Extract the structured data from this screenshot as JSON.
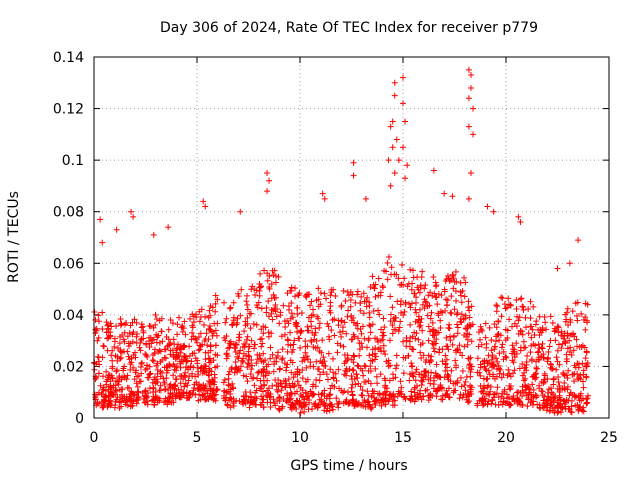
{
  "chart_data": {
    "type": "scatter",
    "title": "Day 306 of 2024, Rate Of TEC Index for receiver p779",
    "xlabel": "GPS time / hours",
    "ylabel": "ROTI / TECUs",
    "xlim": [
      0,
      25
    ],
    "ylim": [
      0,
      0.14
    ],
    "grid": true,
    "marker": "+",
    "marker_color": "#ff0000",
    "x_ticks": [
      {
        "value": 0,
        "label": "0"
      },
      {
        "value": 5,
        "label": "5"
      },
      {
        "value": 10,
        "label": "10"
      },
      {
        "value": 15,
        "label": "15"
      },
      {
        "value": 20,
        "label": "20"
      },
      {
        "value": 25,
        "label": "25"
      }
    ],
    "y_ticks": [
      {
        "value": 0,
        "label": "0"
      },
      {
        "value": 0.02,
        "label": "0.02"
      },
      {
        "value": 0.04,
        "label": "0.04"
      },
      {
        "value": 0.06,
        "label": "0.06"
      },
      {
        "value": 0.08,
        "label": "0.08"
      },
      {
        "value": 0.1,
        "label": "0.1"
      },
      {
        "value": 0.12,
        "label": "0.12"
      },
      {
        "value": 0.14,
        "label": "0.14"
      }
    ],
    "data_gaps_hours": [
      [
        6.0,
        6.3
      ],
      [
        18.4,
        18.6
      ],
      [
        24.0,
        25.0
      ]
    ],
    "envelope": {
      "x": [
        0.0,
        0.5,
        1.0,
        1.5,
        2.0,
        2.5,
        3.0,
        3.5,
        4.0,
        4.5,
        5.0,
        5.5,
        6.0,
        6.5,
        7.0,
        7.5,
        8.0,
        8.5,
        9.0,
        9.5,
        10.0,
        10.5,
        11.0,
        11.5,
        12.0,
        12.5,
        13.0,
        13.5,
        14.0,
        14.5,
        15.0,
        15.5,
        16.0,
        16.5,
        17.0,
        17.5,
        18.0,
        18.5,
        19.0,
        19.5,
        20.0,
        20.5,
        21.0,
        21.5,
        22.0,
        22.5,
        23.0,
        23.5,
        24.0
      ],
      "typical_max": [
        0.045,
        0.04,
        0.038,
        0.038,
        0.039,
        0.038,
        0.04,
        0.04,
        0.04,
        0.04,
        0.042,
        0.045,
        0.048,
        0.045,
        0.048,
        0.05,
        0.055,
        0.058,
        0.055,
        0.052,
        0.05,
        0.05,
        0.052,
        0.05,
        0.05,
        0.05,
        0.052,
        0.055,
        0.06,
        0.065,
        0.065,
        0.06,
        0.055,
        0.055,
        0.055,
        0.058,
        0.058,
        0.038,
        0.04,
        0.045,
        0.048,
        0.048,
        0.045,
        0.042,
        0.04,
        0.04,
        0.042,
        0.045,
        0.045
      ],
      "min": [
        0.006,
        0.005,
        0.005,
        0.005,
        0.005,
        0.006,
        0.006,
        0.006,
        0.008,
        0.008,
        0.008,
        0.008,
        0.008,
        0.005,
        0.005,
        0.005,
        0.005,
        0.005,
        0.004,
        0.004,
        0.003,
        0.004,
        0.004,
        0.004,
        0.004,
        0.005,
        0.005,
        0.005,
        0.005,
        0.006,
        0.007,
        0.007,
        0.008,
        0.008,
        0.008,
        0.008,
        0.008,
        0.006,
        0.005,
        0.005,
        0.005,
        0.005,
        0.005,
        0.005,
        0.004,
        0.003,
        0.003,
        0.003,
        0.004
      ]
    },
    "outliers": [
      {
        "x": 0.3,
        "y": 0.077
      },
      {
        "x": 0.4,
        "y": 0.068
      },
      {
        "x": 1.1,
        "y": 0.073
      },
      {
        "x": 1.8,
        "y": 0.08
      },
      {
        "x": 1.9,
        "y": 0.078
      },
      {
        "x": 2.9,
        "y": 0.071
      },
      {
        "x": 3.6,
        "y": 0.074
      },
      {
        "x": 5.3,
        "y": 0.084
      },
      {
        "x": 5.4,
        "y": 0.082
      },
      {
        "x": 7.1,
        "y": 0.08
      },
      {
        "x": 8.4,
        "y": 0.095
      },
      {
        "x": 8.5,
        "y": 0.092
      },
      {
        "x": 8.4,
        "y": 0.088
      },
      {
        "x": 11.1,
        "y": 0.087
      },
      {
        "x": 11.2,
        "y": 0.085
      },
      {
        "x": 12.6,
        "y": 0.099
      },
      {
        "x": 12.6,
        "y": 0.094
      },
      {
        "x": 13.2,
        "y": 0.085
      },
      {
        "x": 14.6,
        "y": 0.13
      },
      {
        "x": 14.6,
        "y": 0.125
      },
      {
        "x": 14.5,
        "y": 0.115
      },
      {
        "x": 14.4,
        "y": 0.113
      },
      {
        "x": 14.5,
        "y": 0.105
      },
      {
        "x": 14.7,
        "y": 0.108
      },
      {
        "x": 14.8,
        "y": 0.1
      },
      {
        "x": 14.6,
        "y": 0.095
      },
      {
        "x": 15.0,
        "y": 0.132
      },
      {
        "x": 15.0,
        "y": 0.122
      },
      {
        "x": 15.1,
        "y": 0.115
      },
      {
        "x": 15.0,
        "y": 0.105
      },
      {
        "x": 15.2,
        "y": 0.098
      },
      {
        "x": 15.1,
        "y": 0.093
      },
      {
        "x": 14.3,
        "y": 0.1
      },
      {
        "x": 14.4,
        "y": 0.09
      },
      {
        "x": 16.5,
        "y": 0.096
      },
      {
        "x": 17.0,
        "y": 0.087
      },
      {
        "x": 17.4,
        "y": 0.086
      },
      {
        "x": 18.2,
        "y": 0.135
      },
      {
        "x": 18.3,
        "y": 0.133
      },
      {
        "x": 18.3,
        "y": 0.128
      },
      {
        "x": 18.2,
        "y": 0.124
      },
      {
        "x": 18.4,
        "y": 0.12
      },
      {
        "x": 18.2,
        "y": 0.113
      },
      {
        "x": 18.4,
        "y": 0.11
      },
      {
        "x": 18.3,
        "y": 0.095
      },
      {
        "x": 18.2,
        "y": 0.085
      },
      {
        "x": 19.1,
        "y": 0.082
      },
      {
        "x": 19.4,
        "y": 0.08
      },
      {
        "x": 20.6,
        "y": 0.078
      },
      {
        "x": 20.7,
        "y": 0.076
      },
      {
        "x": 23.5,
        "y": 0.069
      },
      {
        "x": 23.1,
        "y": 0.06
      },
      {
        "x": 22.5,
        "y": 0.058
      }
    ]
  }
}
